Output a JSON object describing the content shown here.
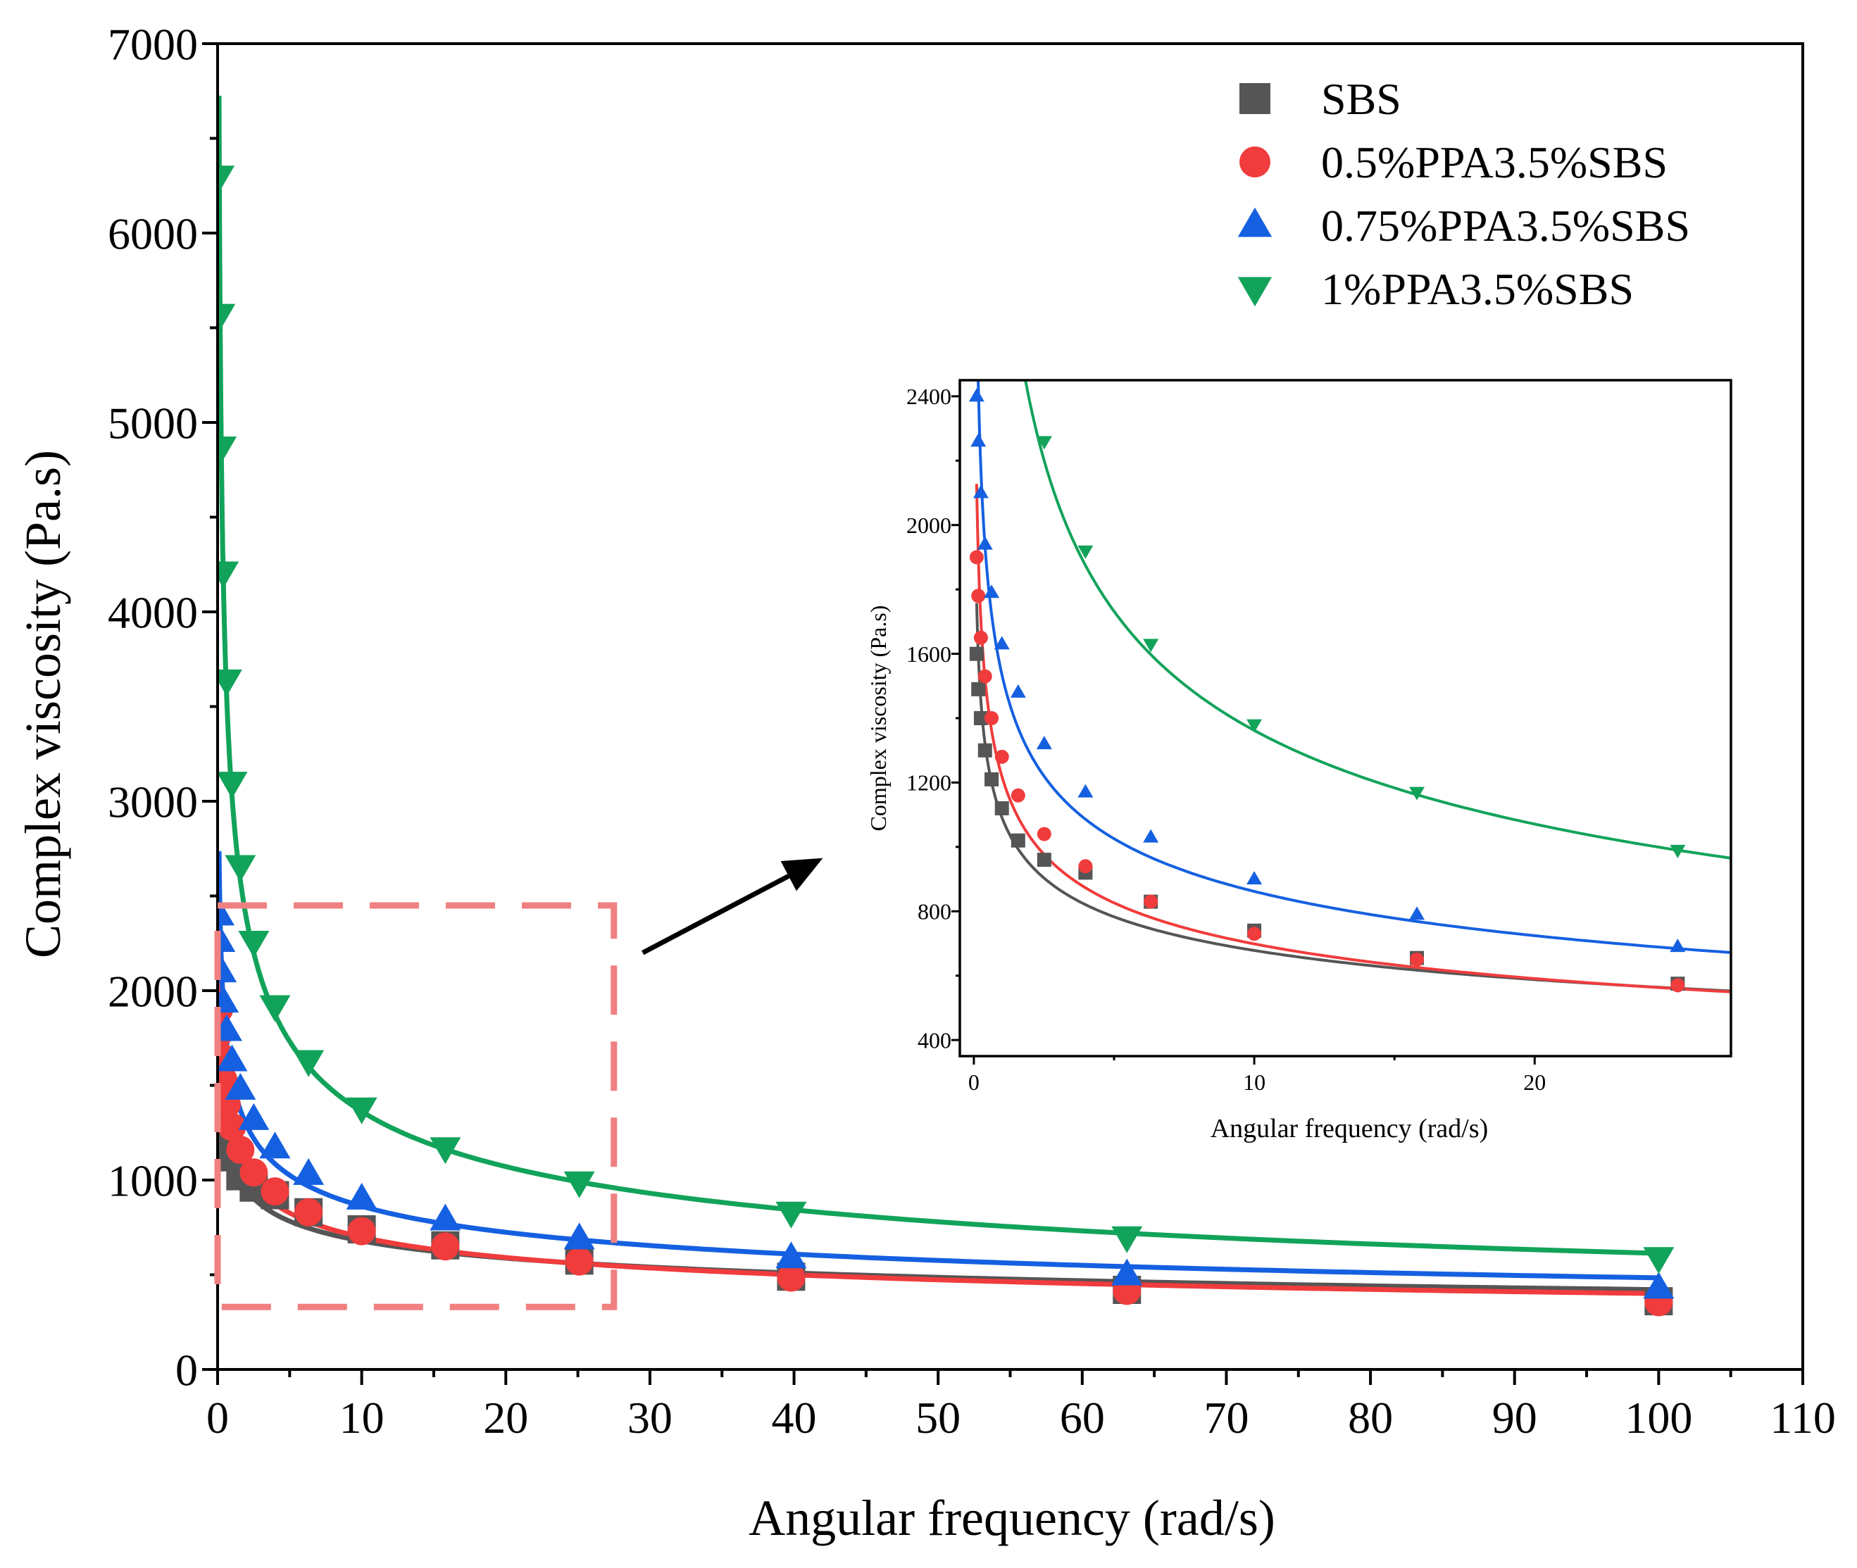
{
  "chart_data": [
    {
      "type": "scatter",
      "role": "main",
      "xlabel": "Angular frequency (rad/s)",
      "ylabel": "Complex viscosity (Pa.s)",
      "xlim": [
        0,
        110
      ],
      "ylim": [
        0,
        7000
      ],
      "xticks": [
        0,
        10,
        20,
        30,
        40,
        50,
        60,
        70,
        80,
        90,
        100,
        110
      ],
      "yticks": [
        0,
        1000,
        2000,
        3000,
        4000,
        5000,
        6000,
        7000
      ],
      "legend": "top-right",
      "series": [
        {
          "name": "SBS",
          "color": "#555555",
          "marker": "square",
          "x": [
            0.1,
            0.158,
            0.251,
            0.398,
            0.631,
            1,
            1.58,
            2.51,
            3.98,
            6.31,
            10,
            15.8,
            25.1,
            39.8,
            63.1,
            100
          ],
          "y": [
            1600,
            1490,
            1400,
            1300,
            1210,
            1120,
            1020,
            960,
            920,
            830,
            740,
            655,
            575,
            490,
            420,
            360
          ]
        },
        {
          "name": "0.5%PPA3.5%SBS",
          "color": "#f03c3c",
          "marker": "circle",
          "x": [
            0.1,
            0.158,
            0.251,
            0.398,
            0.631,
            1,
            1.58,
            2.51,
            3.98,
            6.31,
            10,
            15.8,
            25.1,
            39.8,
            63.1,
            100
          ],
          "y": [
            1900,
            1780,
            1650,
            1530,
            1400,
            1280,
            1160,
            1040,
            940,
            830,
            730,
            650,
            570,
            485,
            415,
            355
          ]
        },
        {
          "name": "0.75%PPA3.5%SBS",
          "color": "#1560e0",
          "marker": "triangle-up",
          "x": [
            0.1,
            0.158,
            0.251,
            0.398,
            0.631,
            1,
            1.58,
            2.51,
            3.98,
            6.31,
            10,
            15.8,
            25.1,
            39.8,
            63.1,
            100
          ],
          "y": [
            2400,
            2260,
            2100,
            1940,
            1790,
            1630,
            1480,
            1320,
            1170,
            1030,
            900,
            790,
            690,
            590,
            500,
            430
          ]
        },
        {
          "name": "1%PPA3.5%SBS",
          "color": "#12a35a",
          "marker": "triangle-down",
          "x": [
            0.1,
            0.158,
            0.251,
            0.398,
            0.631,
            1,
            1.58,
            2.51,
            3.98,
            6.31,
            10,
            15.8,
            25.1,
            39.8,
            63.1,
            100
          ],
          "y": [
            6300,
            5570,
            4870,
            4210,
            3640,
            3100,
            2660,
            2260,
            1920,
            1630,
            1380,
            1170,
            990,
            830,
            700,
            590
          ]
        }
      ],
      "annotations": [
        {
          "type": "dashed-rectangle",
          "color": "#f08080",
          "x": [
            0,
            27.5
          ],
          "y": [
            330,
            2450
          ]
        },
        {
          "type": "arrow",
          "color": "#000000",
          "from": [
            29.5,
            2200
          ],
          "to": [
            42,
            2700
          ]
        }
      ]
    },
    {
      "type": "scatter",
      "role": "inset",
      "xlabel": "Angular frequency (rad/s)",
      "ylabel": "Complex viscosity (Pa.s)",
      "xlim": [
        -0.5,
        27
      ],
      "ylim": [
        350,
        2450
      ],
      "xticks": [
        0,
        10,
        20
      ],
      "yticks": [
        400,
        800,
        1200,
        1600,
        2000,
        2400
      ],
      "series_ref": "main"
    }
  ]
}
